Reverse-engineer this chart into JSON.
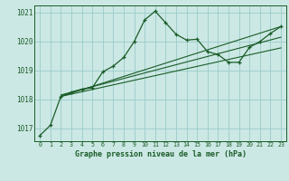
{
  "title": "Graphe pression niveau de la mer (hPa)",
  "bg_color": "#cce8e4",
  "grid_color": "#99ccca",
  "line_color": "#1a5c28",
  "text_color": "#1a5c28",
  "xlim": [
    -0.5,
    23.5
  ],
  "ylim": [
    1016.55,
    1021.25
  ],
  "yticks": [
    1017,
    1018,
    1019,
    1020,
    1021
  ],
  "xticks": [
    0,
    1,
    2,
    3,
    4,
    5,
    6,
    7,
    8,
    9,
    10,
    11,
    12,
    13,
    14,
    15,
    16,
    17,
    18,
    19,
    20,
    21,
    22,
    23
  ],
  "main_x": [
    0,
    1,
    2,
    3,
    4,
    5,
    6,
    7,
    8,
    9,
    10,
    11,
    12,
    13,
    14,
    15,
    16,
    17,
    18,
    19,
    20,
    21,
    22,
    23
  ],
  "main_y": [
    1016.75,
    1017.1,
    1018.1,
    1018.25,
    1018.35,
    1018.4,
    1018.95,
    1019.15,
    1019.45,
    1020.0,
    1020.75,
    1021.05,
    1020.65,
    1020.25,
    1020.05,
    1020.08,
    1019.65,
    1019.55,
    1019.28,
    1019.28,
    1019.8,
    1020.0,
    1020.28,
    1020.52
  ],
  "trend1_x": [
    2,
    23
  ],
  "trend1_y": [
    1018.1,
    1020.52
  ],
  "trend2_x": [
    2,
    23
  ],
  "trend2_y": [
    1018.1,
    1019.78
  ],
  "trend3_x": [
    2,
    23
  ],
  "trend3_y": [
    1018.15,
    1020.15
  ],
  "xlabel_bg": "#2d6e3e",
  "xlabel_fontsize": 6.0,
  "ytick_fontsize": 5.5,
  "xtick_fontsize": 4.8
}
